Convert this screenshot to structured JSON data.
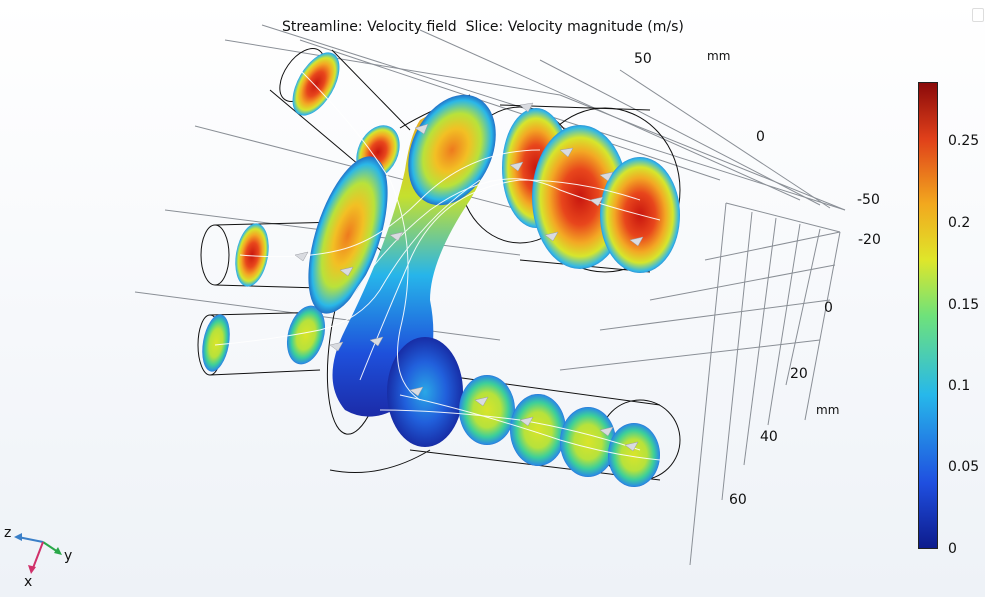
{
  "title": "Streamline: Velocity field  Slice: Velocity magnitude (m/s)",
  "axes": {
    "y_ticks": [
      "50",
      "0",
      "-50"
    ],
    "y_unit": "mm",
    "x_ticks": [
      "-20",
      "0",
      "20",
      "40",
      "60"
    ],
    "x_unit": "mm"
  },
  "colorbar": {
    "min": 0,
    "max": 0.28,
    "ticks": [
      "0.25",
      "0.2",
      "0.15",
      "0.1",
      "0.05",
      "0"
    ],
    "colormap": [
      "#0d1b8c",
      "#1f4fe0",
      "#27b8ea",
      "#6fe27a",
      "#dfe62a",
      "#f2a81e",
      "#e0401a",
      "#8a0a0a"
    ]
  },
  "triad": {
    "z": "z",
    "y": "y",
    "x": "x",
    "z_color": "#3a7fc8",
    "y_color": "#2aa84a",
    "x_color": "#d0306a"
  }
}
